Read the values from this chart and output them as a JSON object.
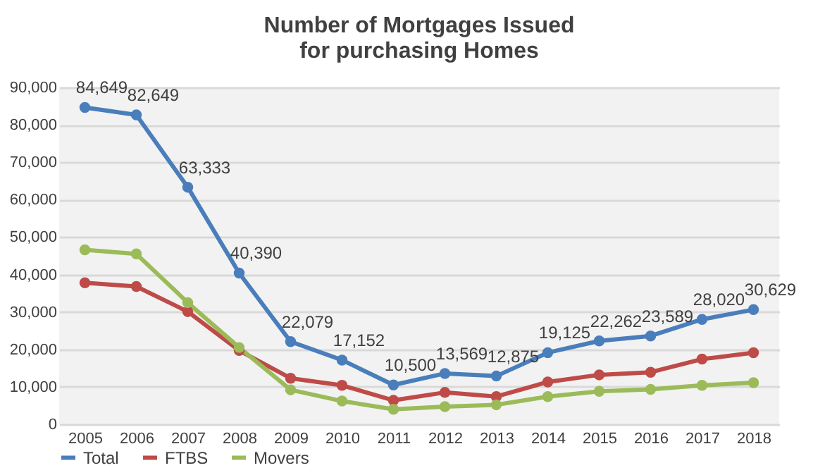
{
  "chart_data": {
    "type": "line",
    "title": [
      "Number of Mortgages Issued",
      "for purchasing Homes"
    ],
    "categories": [
      "2005",
      "2006",
      "2007",
      "2008",
      "2009",
      "2010",
      "2011",
      "2012",
      "2013",
      "2014",
      "2015",
      "2016",
      "2017",
      "2018"
    ],
    "series": [
      {
        "name": "Total",
        "color": "#4a7ebb",
        "values": [
          84649,
          82649,
          63333,
          40390,
          22079,
          17152,
          10500,
          13569,
          12875,
          19125,
          22262,
          23589,
          28020,
          30629
        ],
        "value_labels": [
          "84,649",
          "82,649",
          "63,333",
          "40,390",
          "22,079",
          "17,152",
          "10,500",
          "13,569",
          "12,875",
          "19,125",
          "22,262",
          "23,589",
          "28,020",
          "30,629"
        ]
      },
      {
        "name": "FTBS",
        "color": "#be4b48",
        "values": [
          37800,
          36800,
          30100,
          19700,
          12300,
          10400,
          6400,
          8500,
          7400,
          11300,
          13200,
          13900,
          17400,
          19100
        ]
      },
      {
        "name": "Movers",
        "color": "#9bbb59",
        "values": [
          46600,
          45500,
          32500,
          20500,
          9200,
          6200,
          4000,
          4700,
          5200,
          7400,
          8800,
          9300,
          10400,
          11100
        ]
      }
    ],
    "ylim": [
      0,
      90000
    ],
    "yticks": [
      {
        "value": 0,
        "label": "0"
      },
      {
        "value": 10000,
        "label": "10,000"
      },
      {
        "value": 20000,
        "label": "20,000"
      },
      {
        "value": 30000,
        "label": "30,000"
      },
      {
        "value": 40000,
        "label": "40,000"
      },
      {
        "value": 50000,
        "label": "50,000"
      },
      {
        "value": 60000,
        "label": "60,000"
      },
      {
        "value": 70000,
        "label": "70,000"
      },
      {
        "value": 80000,
        "label": "80,000"
      },
      {
        "value": 90000,
        "label": "90,000"
      }
    ],
    "grid": "y",
    "legend": "bottom",
    "marker": "circle",
    "line_style": "solid"
  }
}
